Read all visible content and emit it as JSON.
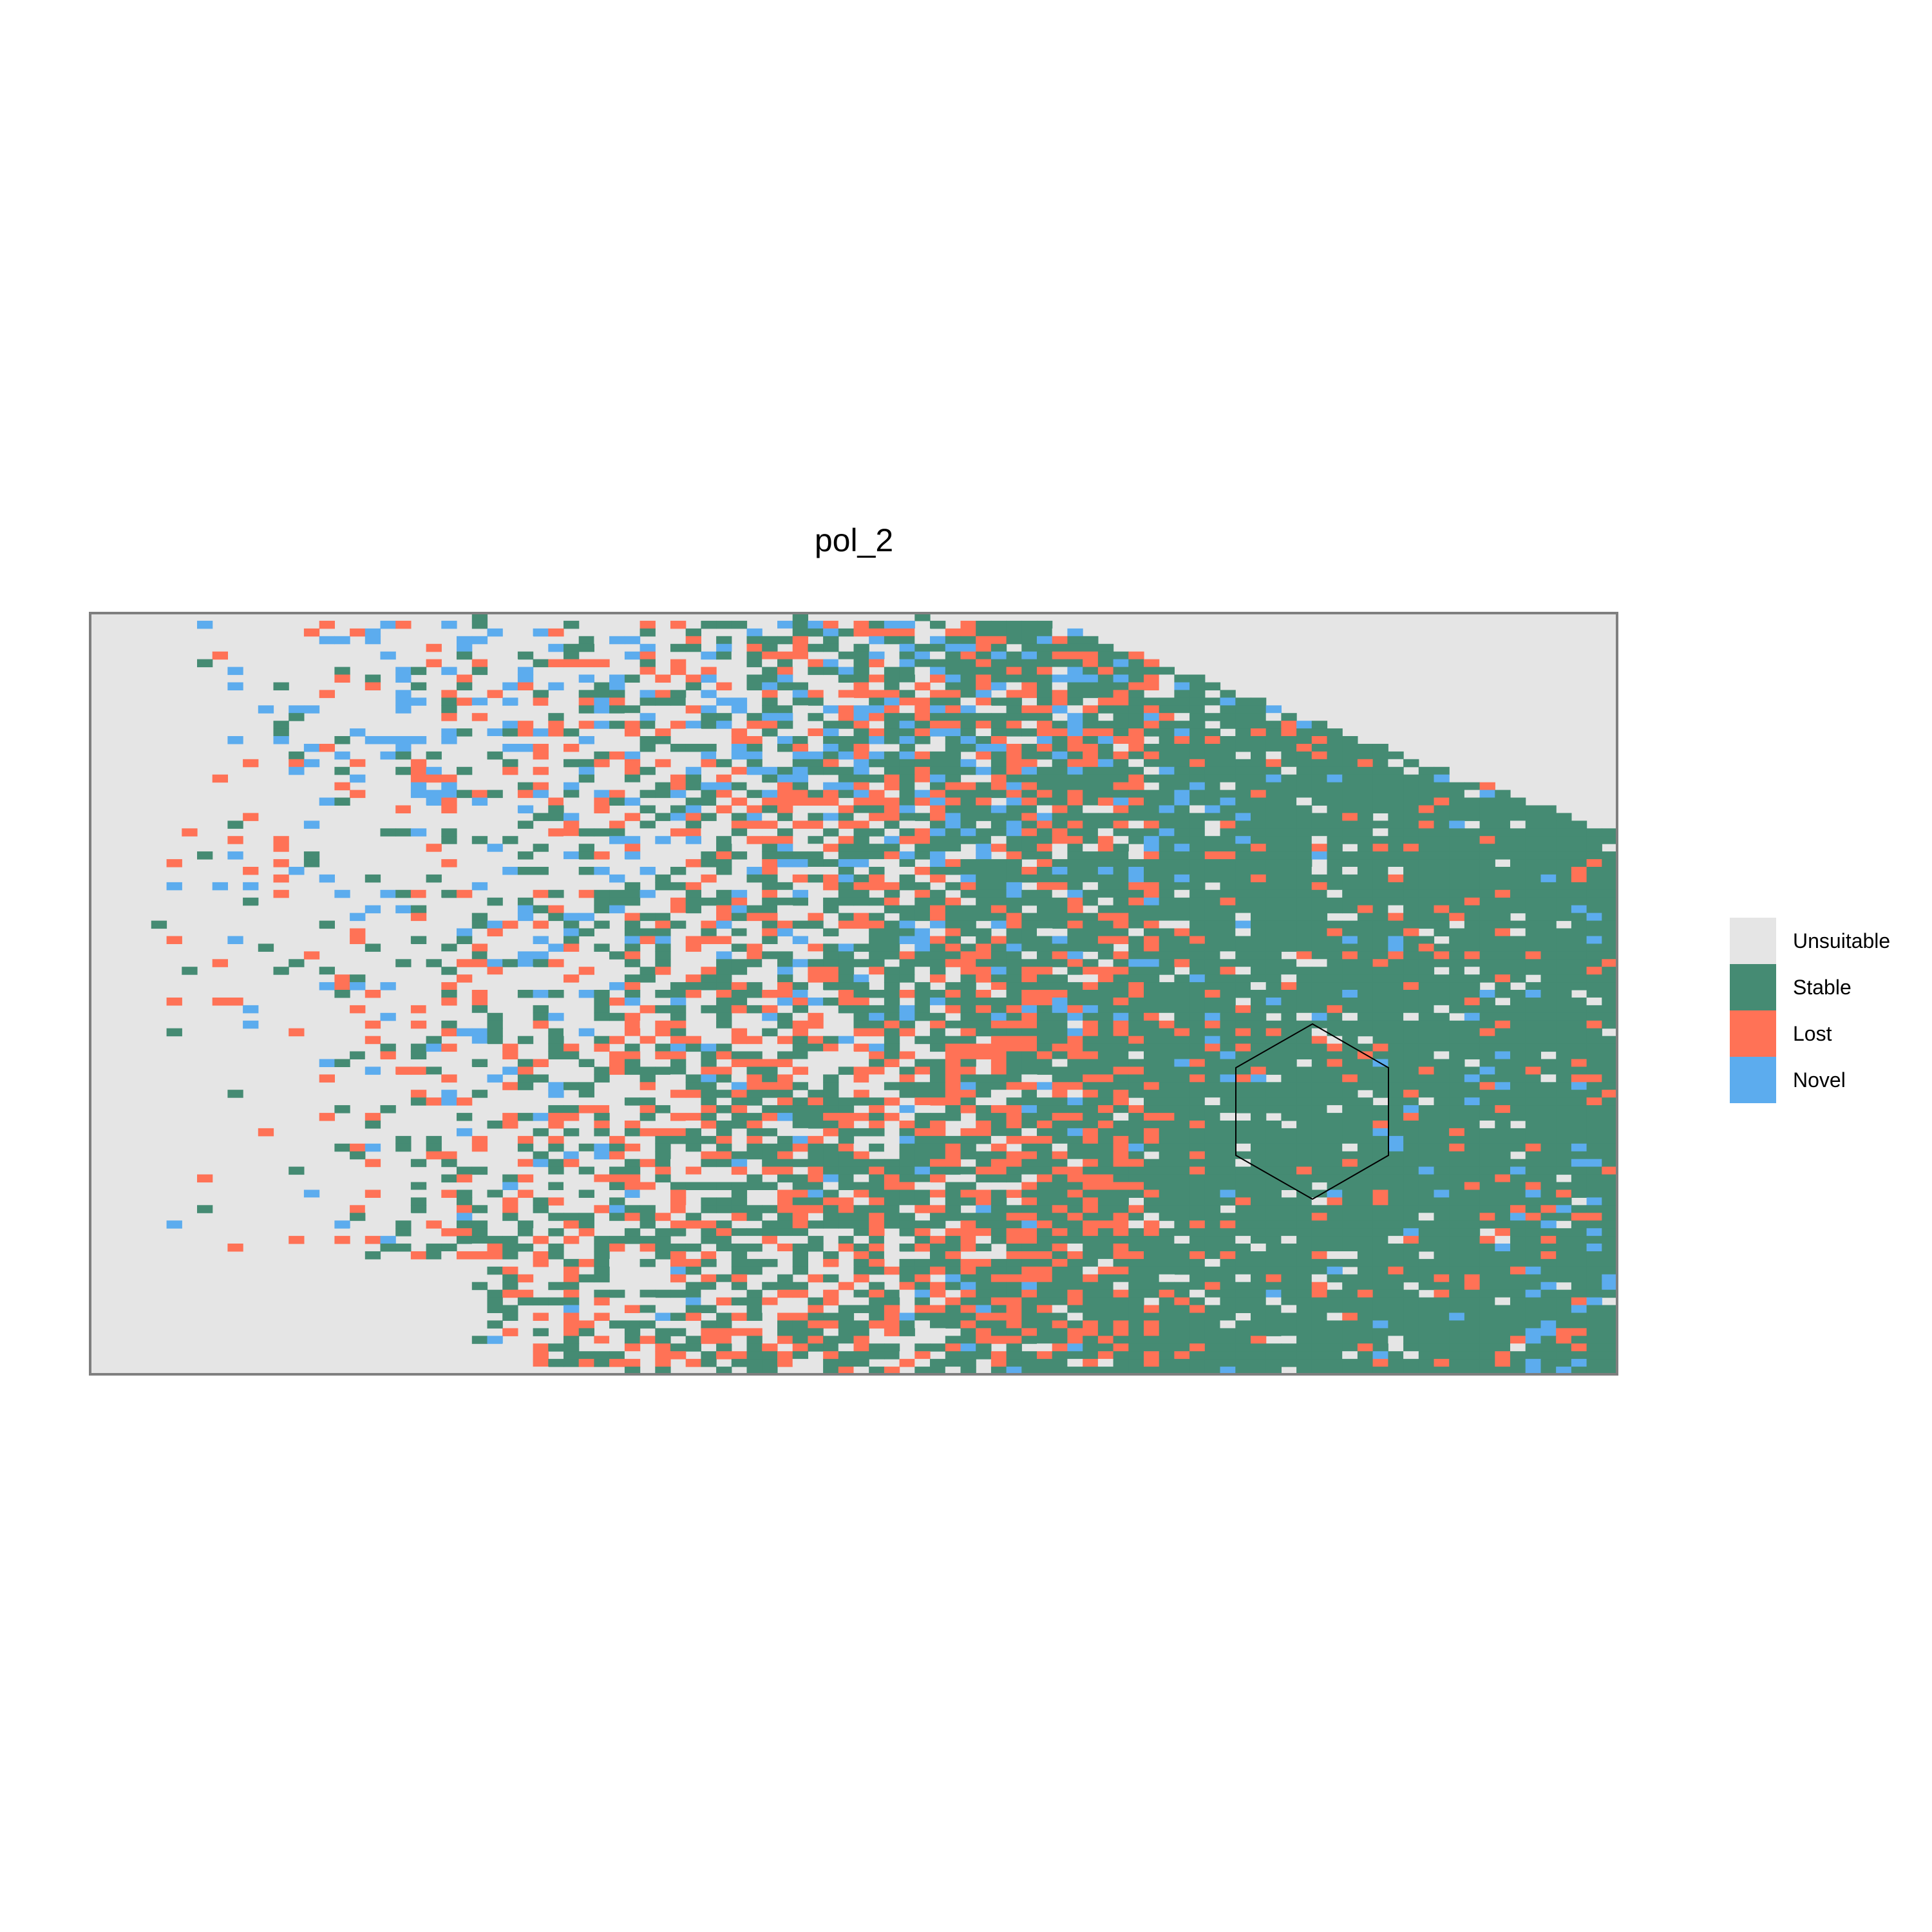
{
  "chart_data": {
    "type": "heatmap",
    "title": "pol_2",
    "xlabel": "",
    "ylabel": "",
    "grid": false,
    "legend_placement": "right",
    "categories": [
      "Unsuitable",
      "Stable",
      "Lost",
      "Novel"
    ],
    "colors": {
      "Unsuitable": "#E5E5E5",
      "Stable": "#458B73",
      "Lost": "#FF7256",
      "Novel": "#5CACEE"
    },
    "annotation": "hexagon outline"
  },
  "legend": {
    "items": [
      {
        "label": "Unsuitable",
        "color": "#E5E5E5"
      },
      {
        "label": "Stable",
        "color": "#458B73"
      },
      {
        "label": "Lost",
        "color": "#FF7256"
      },
      {
        "label": "Novel",
        "color": "#5CACEE"
      }
    ]
  }
}
